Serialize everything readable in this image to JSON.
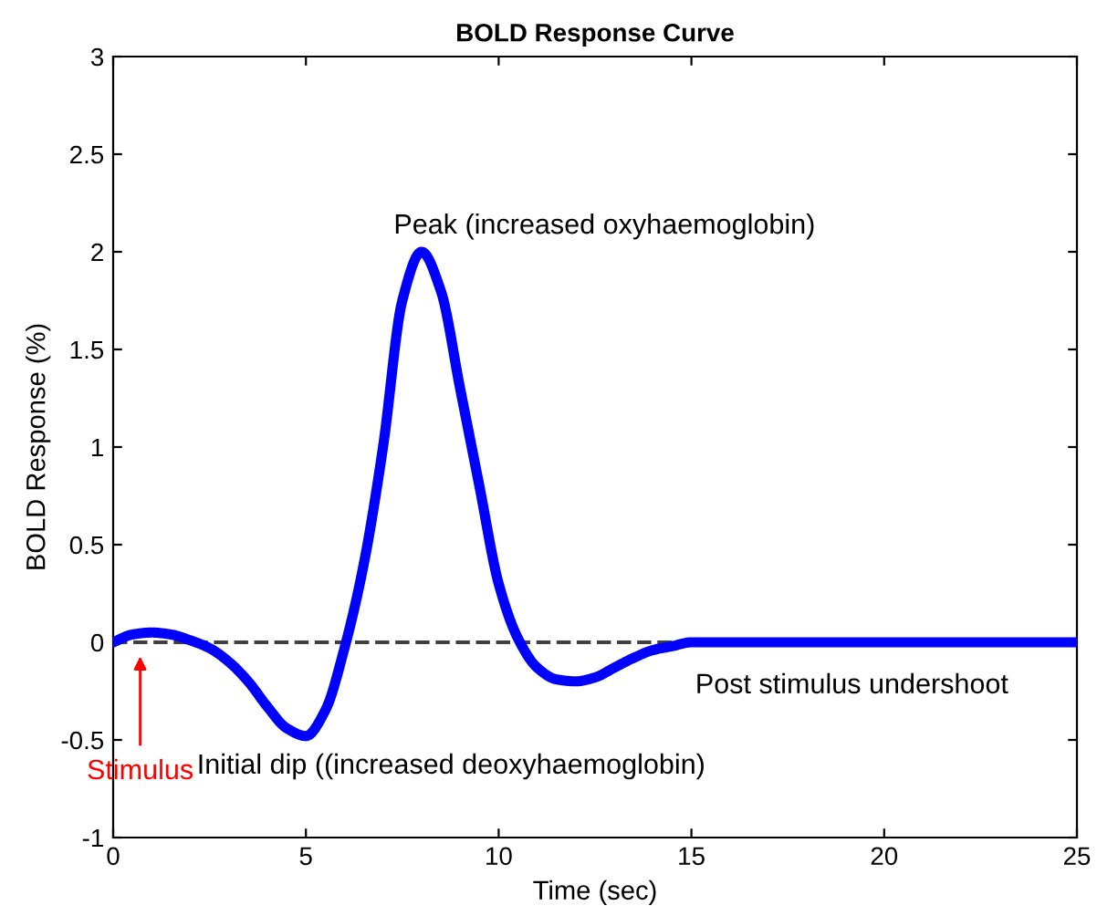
{
  "chart_data": {
    "type": "line",
    "title": "BOLD Response Curve",
    "xlabel": "Time (sec)",
    "ylabel": "BOLD Response (%)",
    "x": [
      0,
      0.5,
      1,
      1.5,
      2,
      2.5,
      3,
      3.5,
      4,
      4.5,
      5,
      5.5,
      6,
      6.5,
      7,
      7.5,
      8,
      8.5,
      9,
      9.5,
      10,
      10.5,
      11,
      11.5,
      12,
      12.5,
      13,
      13.5,
      14,
      14.5,
      15,
      16,
      18,
      20,
      25
    ],
    "series": [
      {
        "color": "#0000ff",
        "values": [
          0,
          0.04,
          0.05,
          0.04,
          0.01,
          -0.03,
          -0.1,
          -0.2,
          -0.33,
          -0.44,
          -0.48,
          -0.35,
          -0.03,
          0.4,
          1.0,
          1.75,
          2.0,
          1.8,
          1.3,
          0.8,
          0.3,
          0.02,
          -0.13,
          -0.19,
          -0.2,
          -0.18,
          -0.13,
          -0.08,
          -0.04,
          -0.02,
          0,
          0,
          0,
          0,
          0
        ]
      }
    ],
    "xlim": [
      0,
      25
    ],
    "xticks": [
      0,
      5,
      10,
      15,
      20,
      25
    ],
    "ylim": [
      -1,
      3
    ],
    "yticks": [
      {
        "value": -1,
        "label": "-1"
      },
      {
        "value": -0.5,
        "label": "-0.5"
      },
      0,
      0.5,
      1,
      1.5,
      2,
      2.5,
      3
    ],
    "ref_lines": [
      {
        "axis": "y",
        "value": 0,
        "color": "#404040",
        "line_style": "dashed"
      }
    ],
    "annotations": [
      {
        "text": "Peak (increased oxyhaemoglobin)",
        "x": 8,
        "y": 2
      },
      {
        "text": "Initial dip ((increased deoxyhaemoglobin)",
        "x": 5,
        "y": -0.48
      },
      "Post stimulus undershoot",
      "Stimulus"
    ],
    "grid": false,
    "legend": false,
    "marker": "none",
    "line_style": "solid"
  }
}
